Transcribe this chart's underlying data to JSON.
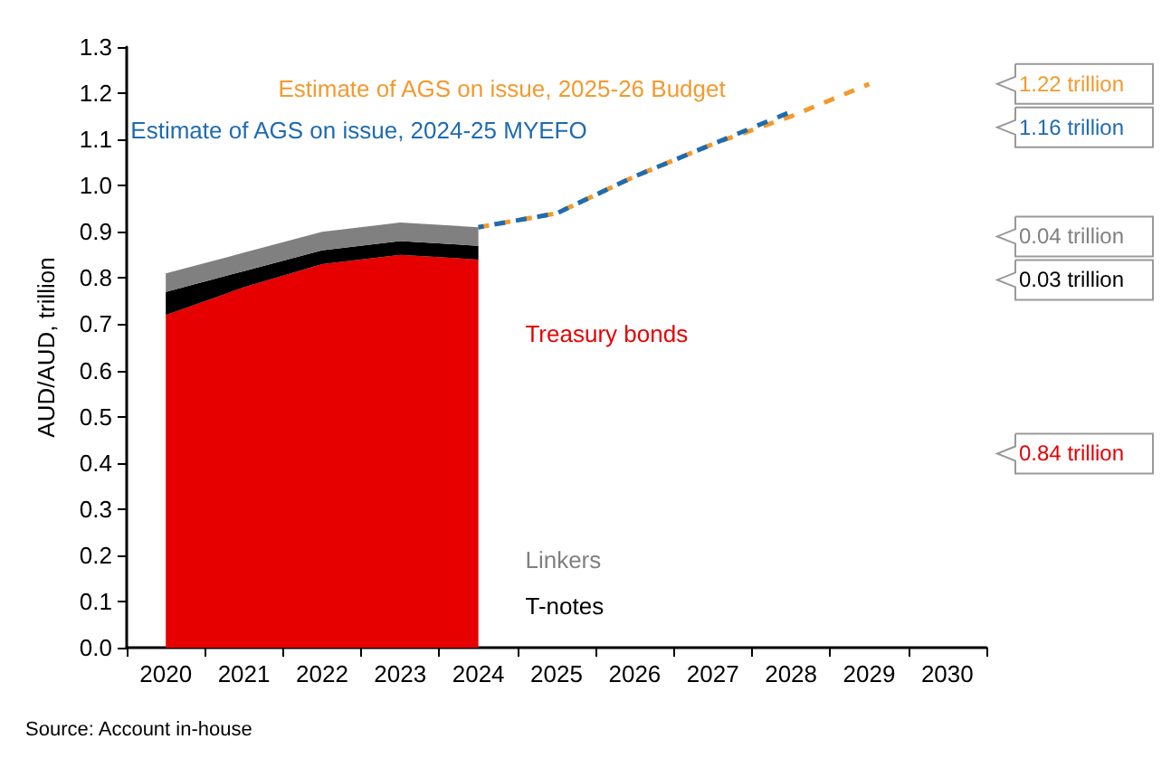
{
  "chart_data": {
    "type": "area",
    "stacked": true,
    "ylabel": "AUD/AUD, trillion",
    "annotations": [
      "1.22 trillion",
      "1.16 trillion",
      "0.04 trillion",
      "0.03 trillion",
      "0.84 trillion",
      "Source: Account in-house"
    ],
    "categories": [
      "2020",
      "2021",
      "2022",
      "2023",
      "2024",
      "2025",
      "2026",
      "2027",
      "2028",
      "2029",
      "2030"
    ],
    "ylim": [
      0,
      1.3
    ],
    "yticks": [
      {
        "value": 0,
        "label": "0.0"
      },
      {
        "value": 0.1,
        "label": "0.1"
      },
      {
        "value": 0.2,
        "label": "0.2"
      },
      {
        "value": 0.3,
        "label": "0.3"
      },
      {
        "value": 0.4,
        "label": "0.4"
      },
      {
        "value": 0.5,
        "label": "0.5"
      },
      {
        "value": 0.6,
        "label": "0.6"
      },
      {
        "value": 0.7,
        "label": "0.7"
      },
      {
        "value": 0.8,
        "label": "0.8"
      },
      {
        "value": 0.9,
        "label": "0.9"
      },
      {
        "value": 1,
        "label": "1.0"
      },
      {
        "value": 1.1,
        "label": "1.1"
      },
      {
        "value": 1.2,
        "label": "1.2"
      },
      {
        "value": 1.3,
        "label": "1.3"
      }
    ],
    "grid": false,
    "marker": "none",
    "series": [
      {
        "name": "Treasury bonds",
        "color": "#e60000",
        "values": [
          0.72,
          0.78,
          0.83,
          0.85,
          0.84,
          null,
          null,
          null,
          null,
          null,
          null
        ]
      },
      {
        "name": "T-notes",
        "color": "#000000",
        "values": [
          0.05,
          0.035,
          0.03,
          0.03,
          0.03,
          null,
          null,
          null,
          null,
          null,
          null
        ]
      },
      {
        "name": "Linkers",
        "color": "#808080",
        "values": [
          0.04,
          0.04,
          0.04,
          0.04,
          0.04,
          null,
          null,
          null,
          null,
          null,
          null
        ]
      },
      {
        "name": "Estimate of AGS on issue, 2025-26 Budget",
        "type": "line",
        "line_style": "dashed",
        "color": "#f39a2e",
        "values": [
          null,
          null,
          null,
          null,
          0.91,
          0.94,
          1.02,
          1.09,
          1.15,
          1.22,
          null
        ]
      },
      {
        "name": "Estimate of AGS on issue, 2024-25 MYEFO",
        "type": "line",
        "line_style": "dashed",
        "color": "#1f6bb0",
        "values": [
          null,
          null,
          null,
          null,
          0.91,
          0.94,
          1.02,
          1.09,
          1.16,
          null,
          null
        ]
      }
    ]
  }
}
